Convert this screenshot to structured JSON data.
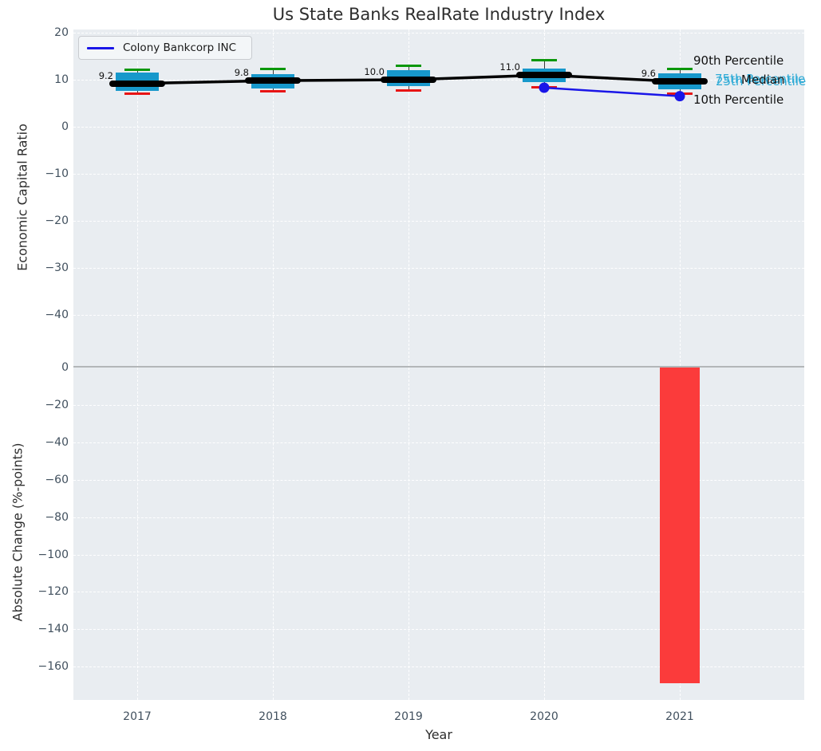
{
  "title": "Us State Banks RealRate Industry Index",
  "colors": {
    "plot_background": "#e9edf1",
    "box_fill": "#1798cb",
    "whisker_90_green": "#0a970a",
    "whisker_10_red": "#e81414",
    "median_black": "#000000",
    "company_line_blue": "#1a16e8",
    "bar_red": "#fb3b3b",
    "annotation_cyan": "#2fabd6",
    "tick_label": "#41505e"
  },
  "legend": {
    "label": "Colony Bankcorp INC"
  },
  "annotations": {
    "p90": "90th Percentile",
    "p75": "75th Percentile",
    "median": "Median",
    "p25": "25th Percentile",
    "p10": "10th Percentile"
  },
  "chart_data": [
    {
      "type": "boxplot",
      "title": "Us State Banks RealRate Industry Index",
      "ylabel": "Economic Capital Ratio",
      "categories": [
        "2017",
        "2018",
        "2019",
        "2020",
        "2021"
      ],
      "ytick_labels": [
        "20",
        "10",
        "0",
        "−10",
        "−20",
        "−30",
        "−40"
      ],
      "ytick_values": [
        20,
        10,
        0,
        -10,
        -20,
        -30,
        -40
      ],
      "ylim": [
        -50,
        20.7
      ],
      "grid": true,
      "legend_position": "upper left",
      "boxes": [
        {
          "year": "2017",
          "p90": 12.2,
          "p75": 11.5,
          "median": 9.2,
          "p25": 7.6,
          "p10": 7.2,
          "median_label": "9.2"
        },
        {
          "year": "2018",
          "p90": 12.4,
          "p75": 11.2,
          "median": 9.8,
          "p25": 8.1,
          "p10": 7.7,
          "median_label": "9.8"
        },
        {
          "year": "2019",
          "p90": 13.0,
          "p75": 12.0,
          "median": 10.0,
          "p25": 8.6,
          "p10": 7.8,
          "median_label": "10.0"
        },
        {
          "year": "2020",
          "p90": 14.2,
          "p75": 12.4,
          "median": 11.0,
          "p25": 9.5,
          "p10": 8.4,
          "median_label": "11.0"
        },
        {
          "year": "2021",
          "p90": 12.4,
          "p75": 11.4,
          "median": 9.6,
          "p25": 8.0,
          "p10": 7.1,
          "median_label": "9.6"
        }
      ],
      "series": [
        {
          "name": "Colony Bankcorp INC",
          "x": [
            "2020",
            "2021"
          ],
          "values": [
            8.3,
            6.5
          ]
        }
      ]
    },
    {
      "type": "bar",
      "ylabel": "Absolute Change (%-points)",
      "xlabel": "Year",
      "categories": [
        "2017",
        "2018",
        "2019",
        "2020",
        "2021"
      ],
      "values": [
        null,
        null,
        null,
        null,
        -169
      ],
      "ytick_labels": [
        "0",
        "−20",
        "−40",
        "−60",
        "−80",
        "−100",
        "−120",
        "−140",
        "−160"
      ],
      "ytick_values": [
        0,
        -20,
        -40,
        -60,
        -80,
        -100,
        -120,
        -140,
        -160
      ],
      "ylim": [
        -178,
        0.5
      ],
      "grid": true
    }
  ]
}
